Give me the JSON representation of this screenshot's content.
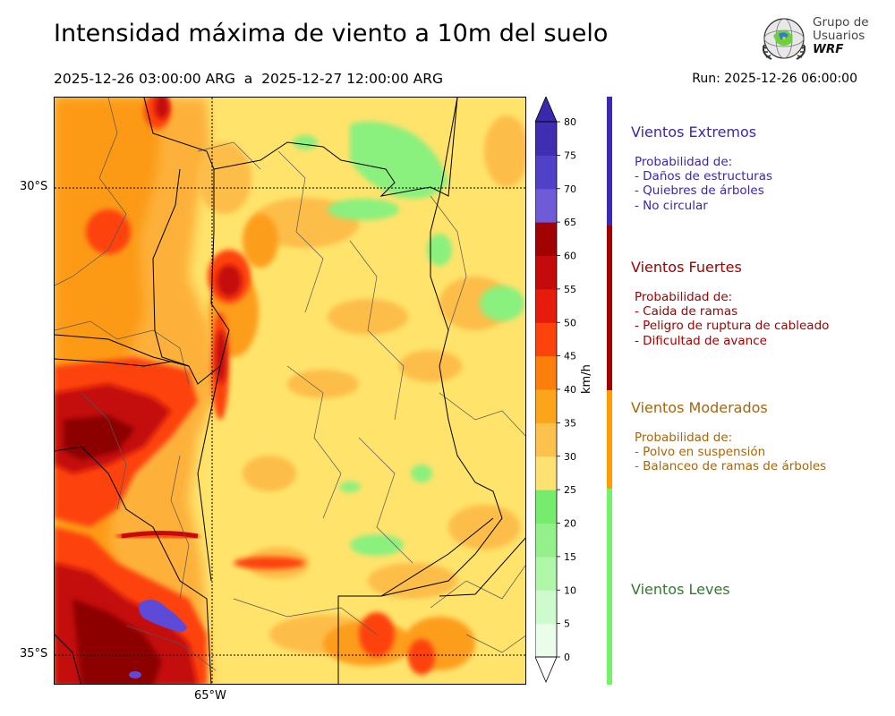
{
  "title": "Intensidad máxima de viento a 10m del suelo",
  "period": "2025-12-26 03:00:00 ARG  a  2025-12-27 12:00:00 ARG",
  "run": "Run: 2025-12-26 06:00:00",
  "logo": {
    "line1": "Grupo de",
    "line2": "Usuarios",
    "line3": "WRF"
  },
  "map": {
    "lat_labels": [
      "30°S",
      "35°S"
    ],
    "lon_labels": [
      "65°W"
    ]
  },
  "colorbar": {
    "unit": "km/h",
    "ticks": [
      "0",
      "5",
      "10",
      "15",
      "20",
      "25",
      "30",
      "35",
      "40",
      "45",
      "50",
      "55",
      "60",
      "65",
      "70",
      "75",
      "80"
    ],
    "colors": [
      "#e9fde9",
      "#cdfbcd",
      "#b0f6a8",
      "#93f08a",
      "#76ec6c",
      "#fde272",
      "#fdc14d",
      "#fca51b",
      "#fc7f0c",
      "#fd430c",
      "#e61b0b",
      "#c40a0a",
      "#a10303",
      "#6f5bd8",
      "#5041c8",
      "#3f2eb1"
    ]
  },
  "categories": [
    {
      "title": "Vientos Extremos",
      "color": "#3a28ad",
      "desc": [
        "Probabilidad de:",
        "- Daños de estructuras",
        "- Quiebres de árboles",
        "- No circular"
      ]
    },
    {
      "title": "Vientos Fuertes",
      "color": "#a30000",
      "desc": [
        "Probabilidad de:",
        "- Caida de ramas",
        "- Peligro de ruptura de cableado",
        "- Dificultad de avance"
      ]
    },
    {
      "title": "Vientos Moderados",
      "color": "#a8650a",
      "desc": [
        "Probabilidad de:",
        "- Polvo en suspensión",
        "- Balanceo de ramas de árboles"
      ]
    },
    {
      "title": "Vientos Leves",
      "color": "#2f7d2a",
      "desc": []
    }
  ],
  "category_bar_colors": [
    "#3a28b7",
    "#a30000",
    "#ff9d00",
    "#76f26a"
  ]
}
